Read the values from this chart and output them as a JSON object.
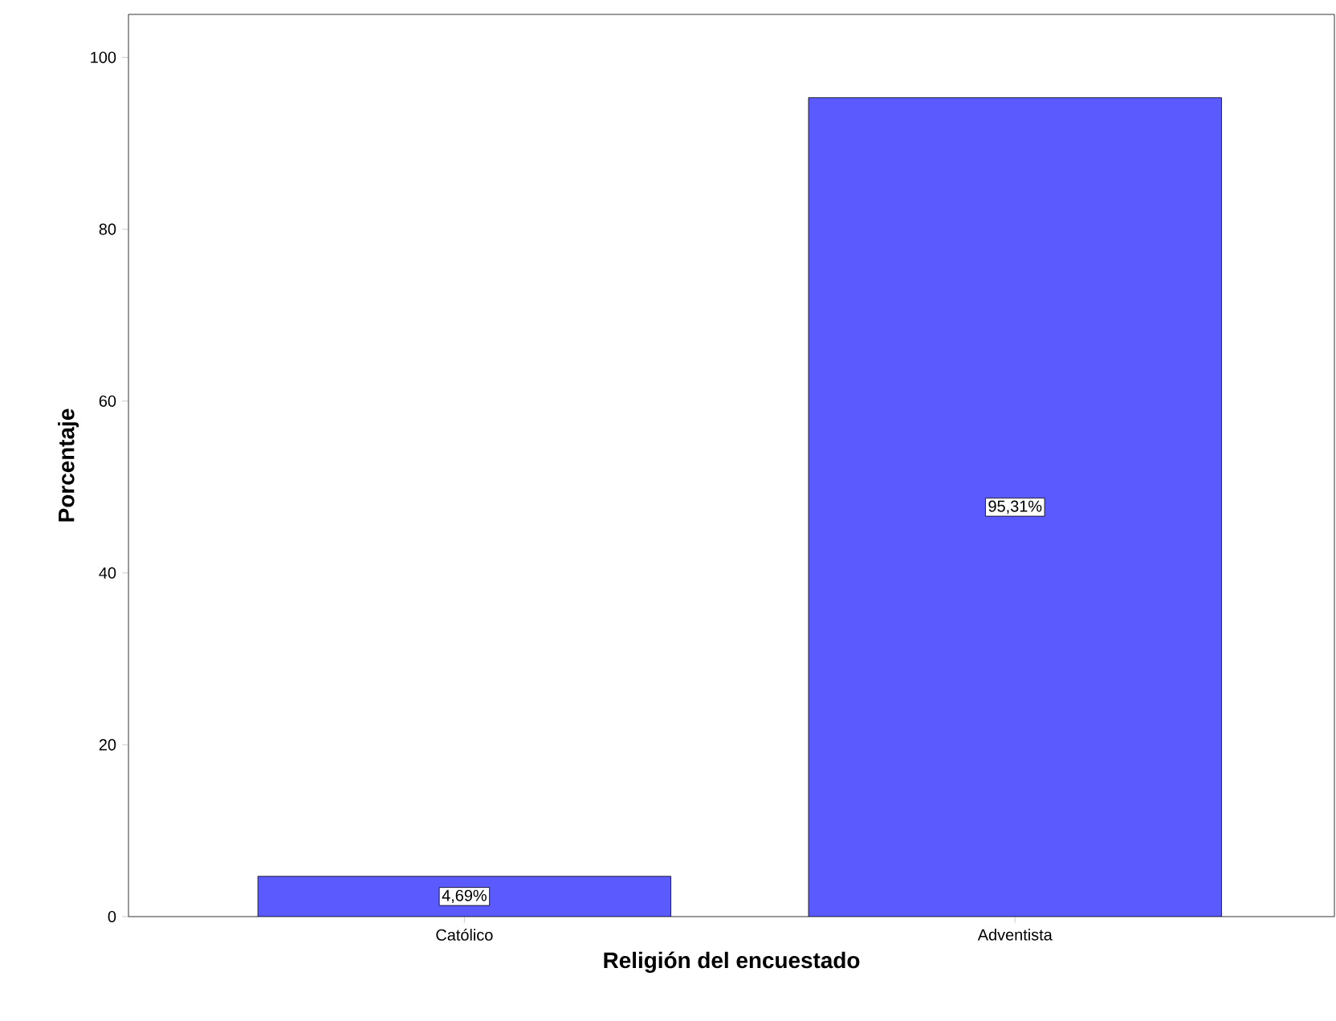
{
  "chart_data": {
    "type": "bar",
    "xlabel": "Religión del encuestado",
    "ylabel": "Porcentaje",
    "categories": [
      "Católico",
      "Adventista"
    ],
    "values": [
      4.69,
      95.31
    ],
    "value_labels": [
      "4,69%",
      "95,31%"
    ],
    "color": "#5a5aff",
    "ylim": [
      0,
      105
    ],
    "yticks": [
      0,
      20,
      40,
      60,
      80,
      100
    ],
    "grid": false
  }
}
